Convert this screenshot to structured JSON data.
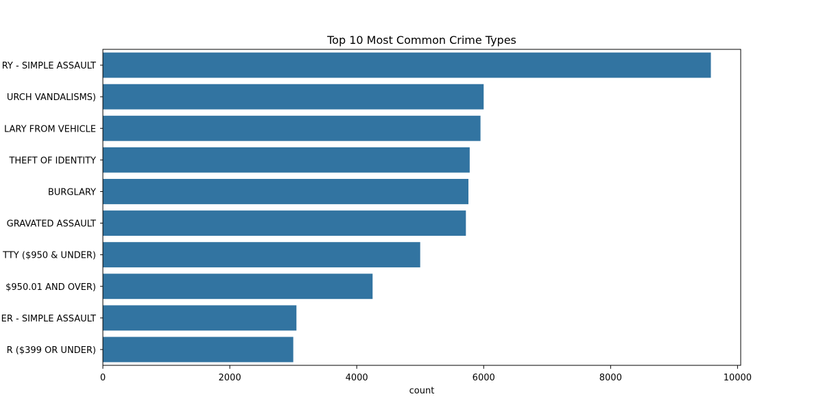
{
  "chart_data": {
    "type": "bar",
    "orientation": "horizontal",
    "title": "Top 10 Most Common Crime Types",
    "xlabel": "count",
    "ylabel": "",
    "xlim": [
      0,
      10050
    ],
    "xticks": [
      0,
      2000,
      4000,
      6000,
      8000,
      10000
    ],
    "categories": [
      "RY - SIMPLE ASSAULT",
      "URCH VANDALISMS)",
      "LARY FROM VEHICLE",
      "THEFT OF IDENTITY",
      "BURGLARY",
      "GRAVATED ASSAULT",
      "TTY ($950 & UNDER)",
      "$950.01 AND OVER)",
      "ER - SIMPLE ASSAULT",
      "R ($399 OR UNDER)"
    ],
    "values": [
      9580,
      6000,
      5950,
      5780,
      5760,
      5720,
      5000,
      4250,
      3050,
      3000
    ],
    "bar_color": "#3274a1",
    "grid": false,
    "legend": "none"
  }
}
